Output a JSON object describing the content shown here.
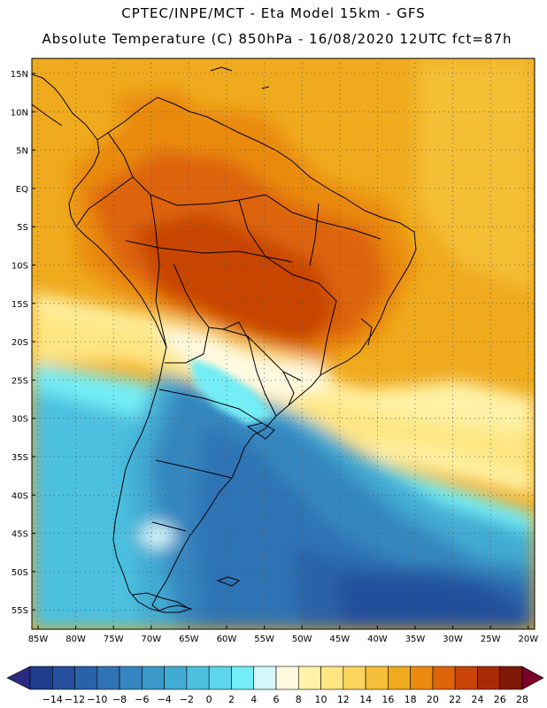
{
  "header": {
    "line1": "CPTEC/INPE/MCT -  Eta Model 15km - GFS",
    "line2": "Absolute Temperature (C) 850hPa - 16/08/2020 12UTC fct=87h"
  },
  "axes": {
    "lat_labels": [
      "15N",
      "10N",
      "5N",
      "EQ",
      "5S",
      "10S",
      "15S",
      "20S",
      "25S",
      "30S",
      "35S",
      "40S",
      "45S",
      "50S",
      "55S"
    ],
    "lon_labels": [
      "85W",
      "80W",
      "75W",
      "70W",
      "65W",
      "60W",
      "55W",
      "50W",
      "45W",
      "40W",
      "35W",
      "30W",
      "25W",
      "20W"
    ]
  },
  "colorbar": {
    "labels": [
      "-14",
      "-12",
      "-10",
      "-8",
      "-6",
      "-4",
      "-2",
      "0",
      "2",
      "4",
      "6",
      "8",
      "10",
      "12",
      "14",
      "16",
      "18",
      "20",
      "22",
      "24",
      "26",
      "28"
    ],
    "under_color": "#2a2a80",
    "over_color": "#7a0028",
    "colors": [
      "#1e3d8c",
      "#234f9c",
      "#2962a8",
      "#2f73b4",
      "#3586bf",
      "#3b99c9",
      "#42abd3",
      "#4cc0df",
      "#5cd6ea",
      "#73edf6",
      "#d3f7fb",
      "#fff9e0",
      "#fff2a6",
      "#ffe683",
      "#fbd45d",
      "#f4be36",
      "#efaa1e",
      "#ea8a0e",
      "#dd6408",
      "#c84406",
      "#a82a05",
      "#7e1905"
    ]
  },
  "colors": {
    "background": "#ffffff",
    "frame": "#000000",
    "coast": "#000000"
  }
}
